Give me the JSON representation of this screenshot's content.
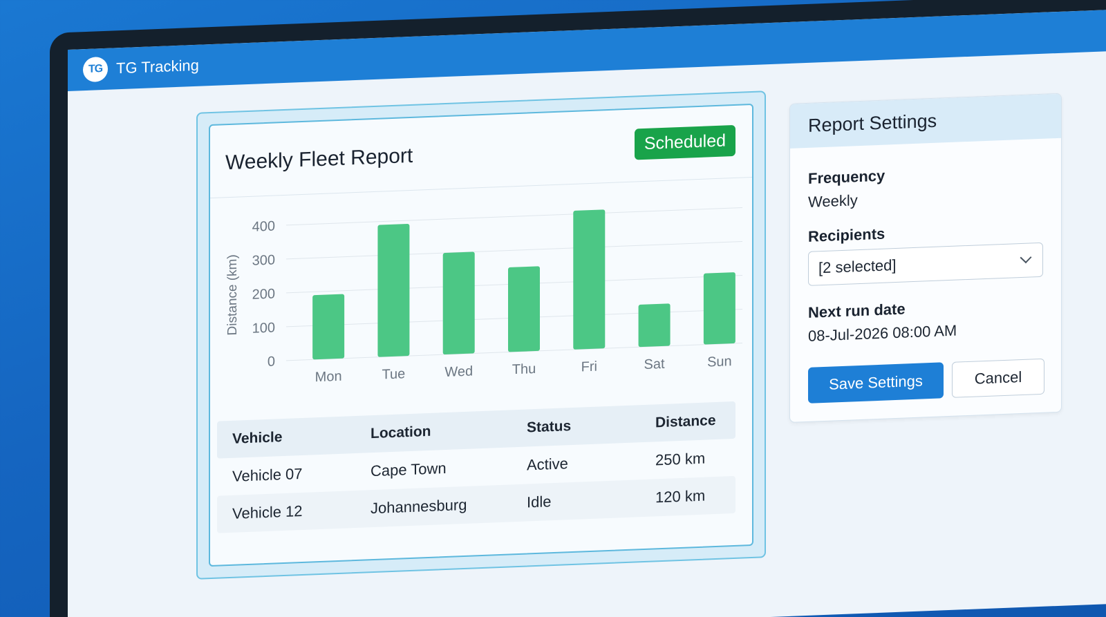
{
  "app": {
    "logo_text": "TG",
    "title": "TG Tracking"
  },
  "report": {
    "title": "Weekly Fleet Report",
    "status_badge": "Scheduled",
    "table": {
      "headers": [
        "Vehicle",
        "Location",
        "Status",
        "Distance"
      ],
      "rows": [
        [
          "Vehicle 07",
          "Cape Town",
          "Active",
          "250 km"
        ],
        [
          "Vehicle 12",
          "Johannesburg",
          "Idle",
          "120 km"
        ]
      ]
    }
  },
  "chart_data": {
    "type": "bar",
    "categories": [
      "Mon",
      "Tue",
      "Wed",
      "Thu",
      "Fri",
      "Sat",
      "Sun"
    ],
    "values": [
      190,
      390,
      300,
      250,
      410,
      125,
      210
    ],
    "ylabel": "Distance (km)",
    "yticks": [
      0,
      100,
      200,
      300,
      400
    ],
    "ylim": [
      0,
      400
    ],
    "grid": true,
    "bar_color": "#4cc785"
  },
  "settings": {
    "title": "Report Settings",
    "frequency_label": "Frequency",
    "frequency_value": "Weekly",
    "recipients_label": "Recipients",
    "recipients_value": "[2 selected]",
    "next_run_label": "Next run date",
    "next_run_value": "08-Jul-2026 08:00 AM",
    "save_label": "Save Settings",
    "cancel_label": "Cancel"
  },
  "colors": {
    "accent": "#1e7fd6",
    "badge": "#19a34a",
    "bars": "#4cc785"
  }
}
